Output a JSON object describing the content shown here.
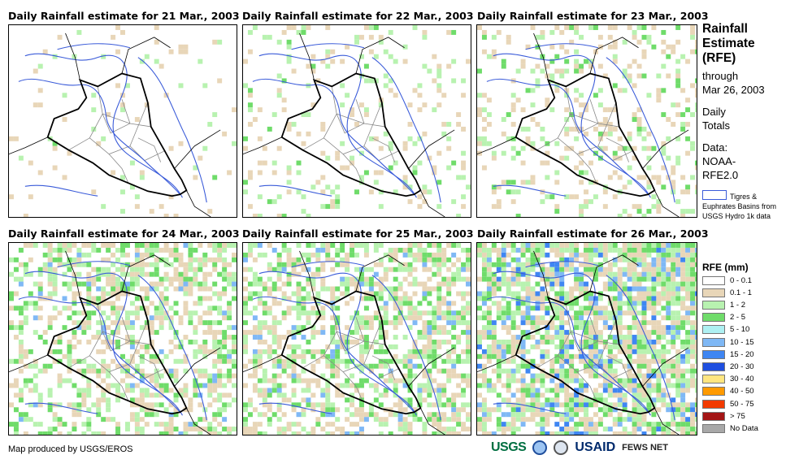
{
  "panels": [
    {
      "title": "Daily Rainfall estimate for 21 Mar., 2003",
      "intensity": 0.05
    },
    {
      "title": "Daily Rainfall estimate for 22 Mar., 2003",
      "intensity": 0.15
    },
    {
      "title": "Daily Rainfall estimate for 23 Mar., 2003",
      "intensity": 0.25
    },
    {
      "title": "Daily Rainfall estimate for 24 Mar., 2003",
      "intensity": 0.55
    },
    {
      "title": "Daily Rainfall estimate for 25 Mar., 2003",
      "intensity": 0.6
    },
    {
      "title": "Daily Rainfall estimate for 26 Mar., 2003",
      "intensity": 0.85
    }
  ],
  "sidebar": {
    "title_lines": [
      "Rainfall",
      "Estimate",
      "(RFE)"
    ],
    "through_label": "through",
    "through_date": "Mar 26, 2003",
    "totals_lines": [
      "Daily",
      "Totals"
    ],
    "data_lines": [
      "Data:",
      "NOAA-",
      "RFE2.0"
    ],
    "basin_text": "Tigres & Euphrates Basins from USGS Hydro 1k data",
    "basin_color": "#3a5bd9"
  },
  "rfe_legend": {
    "title": "RFE (mm)",
    "items": [
      {
        "label": "0 - 0.1",
        "color": "#ffffff"
      },
      {
        "label": "0.1 - 1",
        "color": "#e8d6b8"
      },
      {
        "label": "1 - 2",
        "color": "#b8f2b0"
      },
      {
        "label": "2 - 5",
        "color": "#6fdc6a"
      },
      {
        "label": "5 - 10",
        "color": "#aef0f2"
      },
      {
        "label": "10 - 15",
        "color": "#7fb8f5"
      },
      {
        "label": "15 - 20",
        "color": "#3f86f2"
      },
      {
        "label": "20 - 30",
        "color": "#1f4fe0"
      },
      {
        "label": "30 - 40",
        "color": "#ffe680"
      },
      {
        "label": "40 - 50",
        "color": "#ff9a00"
      },
      {
        "label": "50 - 75",
        "color": "#f23a00"
      },
      {
        "label": "> 75",
        "color": "#a31515"
      },
      {
        "label": "No Data",
        "color": "#a8a8a8"
      }
    ]
  },
  "footer": {
    "credit": "Map produced by USGS/EROS",
    "logos": [
      "USGS",
      "USAID",
      "FEWS NET"
    ]
  }
}
